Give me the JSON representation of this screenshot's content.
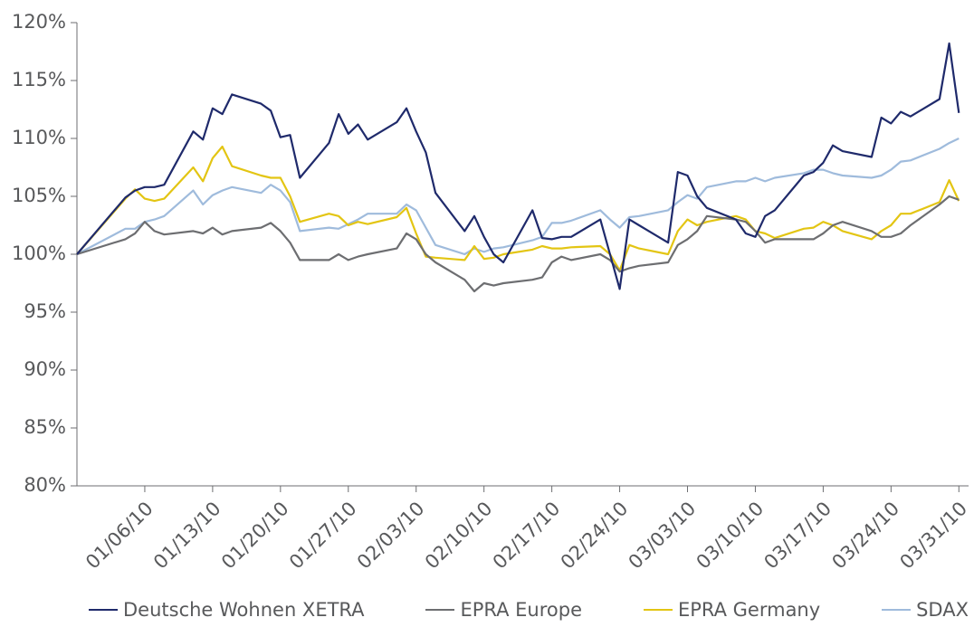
{
  "chart_data": {
    "type": "line",
    "x": [
      "2009-12-30",
      "2010-01-04",
      "2010-01-05",
      "2010-01-06",
      "2010-01-07",
      "2010-01-08",
      "2010-01-11",
      "2010-01-12",
      "2010-01-13",
      "2010-01-14",
      "2010-01-15",
      "2010-01-18",
      "2010-01-19",
      "2010-01-20",
      "2010-01-21",
      "2010-01-22",
      "2010-01-25",
      "2010-01-26",
      "2010-01-27",
      "2010-01-28",
      "2010-01-29",
      "2010-02-01",
      "2010-02-02",
      "2010-02-03",
      "2010-02-04",
      "2010-02-05",
      "2010-02-08",
      "2010-02-09",
      "2010-02-10",
      "2010-02-11",
      "2010-02-12",
      "2010-02-15",
      "2010-02-16",
      "2010-02-17",
      "2010-02-18",
      "2010-02-19",
      "2010-02-22",
      "2010-02-23",
      "2010-02-24",
      "2010-02-25",
      "2010-02-26",
      "2010-03-01",
      "2010-03-02",
      "2010-03-03",
      "2010-03-04",
      "2010-03-05",
      "2010-03-08",
      "2010-03-09",
      "2010-03-10",
      "2010-03-11",
      "2010-03-12",
      "2010-03-15",
      "2010-03-16",
      "2010-03-17",
      "2010-03-18",
      "2010-03-19",
      "2010-03-22",
      "2010-03-23",
      "2010-03-24",
      "2010-03-25",
      "2010-03-26",
      "2010-03-29",
      "2010-03-30",
      "2010-03-31"
    ],
    "series": [
      {
        "name": "Deutsche Wohnen XETRA",
        "color": "#1f2a6b",
        "values": [
          100,
          104.9,
          105.5,
          105.8,
          105.8,
          106.0,
          110.6,
          109.9,
          112.6,
          112.1,
          113.8,
          113.0,
          112.4,
          110.1,
          110.3,
          106.6,
          109.6,
          112.1,
          110.4,
          111.2,
          109.9,
          111.4,
          112.6,
          110.6,
          108.8,
          105.3,
          102.0,
          103.3,
          101.5,
          100.0,
          99.3,
          103.8,
          101.4,
          101.3,
          101.5,
          101.5,
          103.0,
          100.0,
          97.0,
          103.0,
          102.5,
          101.0,
          107.1,
          106.8,
          105.0,
          104.0,
          103.0,
          101.8,
          101.5,
          103.3,
          103.8,
          106.8,
          107.1,
          107.9,
          109.4,
          108.9,
          108.4,
          111.8,
          111.3,
          112.3,
          111.9,
          113.4,
          118.2,
          112.2
        ]
      },
      {
        "name": "EPRA Europe",
        "color": "#6d6e71",
        "values": [
          100,
          101.3,
          101.8,
          102.8,
          102.0,
          101.7,
          102.0,
          101.8,
          102.3,
          101.7,
          102.0,
          102.3,
          102.7,
          102.0,
          101.0,
          99.5,
          99.5,
          100.0,
          99.5,
          99.8,
          100.0,
          100.5,
          101.8,
          101.3,
          100.0,
          99.3,
          97.8,
          96.8,
          97.5,
          97.3,
          97.5,
          97.8,
          98.0,
          99.3,
          99.8,
          99.5,
          100.0,
          99.5,
          98.5,
          98.8,
          99.0,
          99.3,
          100.8,
          101.3,
          102.0,
          103.3,
          103.0,
          102.8,
          102.0,
          101.0,
          101.3,
          101.3,
          101.3,
          101.8,
          102.5,
          102.8,
          102.0,
          101.5,
          101.5,
          101.8,
          102.5,
          104.3,
          105.0,
          104.7
        ]
      },
      {
        "name": "EPRA Germany",
        "color": "#e3c513",
        "values": [
          100,
          104.8,
          105.6,
          104.8,
          104.6,
          104.8,
          107.5,
          106.3,
          108.3,
          109.3,
          107.6,
          106.8,
          106.6,
          106.6,
          105.0,
          102.8,
          103.5,
          103.3,
          102.5,
          102.8,
          102.6,
          103.2,
          104.0,
          101.8,
          99.8,
          99.7,
          99.5,
          100.7,
          99.6,
          99.7,
          100.0,
          100.4,
          100.7,
          100.5,
          100.5,
          100.6,
          100.7,
          100.0,
          98.6,
          100.8,
          100.5,
          100.0,
          102.0,
          103.0,
          102.5,
          102.8,
          103.3,
          103.0,
          102.0,
          101.8,
          101.4,
          102.2,
          102.3,
          102.8,
          102.5,
          102.0,
          101.3,
          102.0,
          102.5,
          103.5,
          103.5,
          104.5,
          106.4,
          104.6
        ]
      },
      {
        "name": "SDAX",
        "color": "#9fbbdc",
        "values": [
          100,
          102.2,
          102.2,
          102.8,
          103.0,
          103.3,
          105.5,
          104.3,
          105.1,
          105.5,
          105.8,
          105.3,
          106.0,
          105.5,
          104.5,
          102.0,
          102.3,
          102.2,
          102.6,
          103.0,
          103.5,
          103.5,
          104.3,
          103.8,
          102.3,
          100.8,
          100.0,
          100.5,
          100.2,
          100.5,
          100.6,
          101.2,
          101.5,
          102.7,
          102.7,
          102.9,
          103.8,
          103.0,
          102.3,
          103.2,
          103.3,
          103.8,
          104.5,
          105.1,
          104.8,
          105.8,
          106.3,
          106.3,
          106.6,
          106.3,
          106.6,
          107.0,
          107.3,
          107.3,
          107.0,
          106.8,
          106.6,
          106.8,
          107.3,
          108.0,
          108.1,
          109.1,
          109.6,
          110.0
        ]
      }
    ],
    "xlim": [
      "2009-12-30",
      "2010-04-01"
    ],
    "xticks": [
      {
        "value": "2010-01-06",
        "label": "01/06/10"
      },
      {
        "value": "2010-01-13",
        "label": "01/13/10"
      },
      {
        "value": "2010-01-20",
        "label": "01/20/10"
      },
      {
        "value": "2010-01-27",
        "label": "01/27/10"
      },
      {
        "value": "2010-02-03",
        "label": "02/03/10"
      },
      {
        "value": "2010-02-10",
        "label": "02/10/10"
      },
      {
        "value": "2010-02-17",
        "label": "02/17/10"
      },
      {
        "value": "2010-02-24",
        "label": "02/24/10"
      },
      {
        "value": "2010-03-03",
        "label": "03/03/10"
      },
      {
        "value": "2010-03-10",
        "label": "03/10/10"
      },
      {
        "value": "2010-03-17",
        "label": "03/17/10"
      },
      {
        "value": "2010-03-24",
        "label": "03/24/10"
      },
      {
        "value": "2010-03-31",
        "label": "03/31/10"
      }
    ],
    "ylim": [
      80,
      120
    ],
    "yticks": [
      {
        "value": 80,
        "label": "80%"
      },
      {
        "value": 85,
        "label": "85%"
      },
      {
        "value": 90,
        "label": "90%"
      },
      {
        "value": 95,
        "label": "95%"
      },
      {
        "value": 100,
        "label": "100%"
      },
      {
        "value": 105,
        "label": "105%"
      },
      {
        "value": 110,
        "label": "110%"
      },
      {
        "value": 115,
        "label": "115%"
      },
      {
        "value": 120,
        "label": "120%"
      }
    ],
    "grid": false,
    "legend": "bottom"
  }
}
